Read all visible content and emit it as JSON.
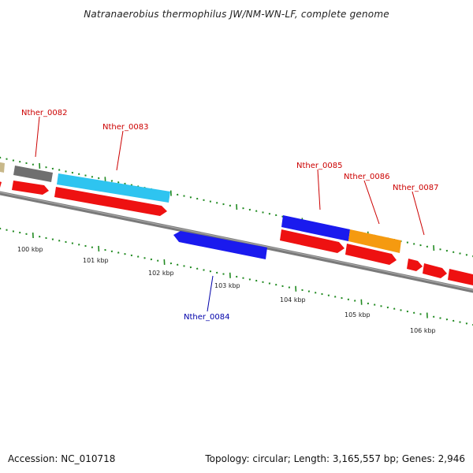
{
  "title": "Natranaerobius thermophilus JW/NM-WN-LF, complete genome",
  "footer": {
    "accession": "Accession: NC_010718",
    "summary": "Topology: circular; Length: 3,165,557 bp; Genes: 2,946"
  },
  "colors": {
    "backbone": "#7a7a7a",
    "tick": "#228b22",
    "label_forward": "#cc0000",
    "label_reverse": "#0000aa"
  },
  "scale": {
    "unit": "kbp",
    "labels": [
      "100 kbp",
      "101 kbp",
      "102 kbp",
      "103 kbp",
      "104 kbp",
      "105 kbp",
      "106 kbp"
    ]
  },
  "gene_labels": [
    {
      "text": "Nther_0082",
      "strand": "forward"
    },
    {
      "text": "Nther_0083",
      "strand": "forward"
    },
    {
      "text": "Nther_0085",
      "strand": "forward"
    },
    {
      "text": "Nther_0086",
      "strand": "forward"
    },
    {
      "text": "Nther_0087",
      "strand": "forward"
    },
    {
      "text": "Nther_0084",
      "strand": "reverse"
    }
  ],
  "features": [
    {
      "name": "tan-feature",
      "color": "#c8b88a"
    },
    {
      "name": "gray-feature",
      "color": "#777777"
    },
    {
      "name": "cyan-feature",
      "color": "#2ec4f0"
    },
    {
      "name": "blue-feature-0084",
      "color": "#1a1aee"
    },
    {
      "name": "blue-feature-0085",
      "color": "#1a1aee"
    },
    {
      "name": "orange-feature",
      "color": "#f59a10"
    },
    {
      "name": "red-cds",
      "color": "#ee1111"
    }
  ]
}
